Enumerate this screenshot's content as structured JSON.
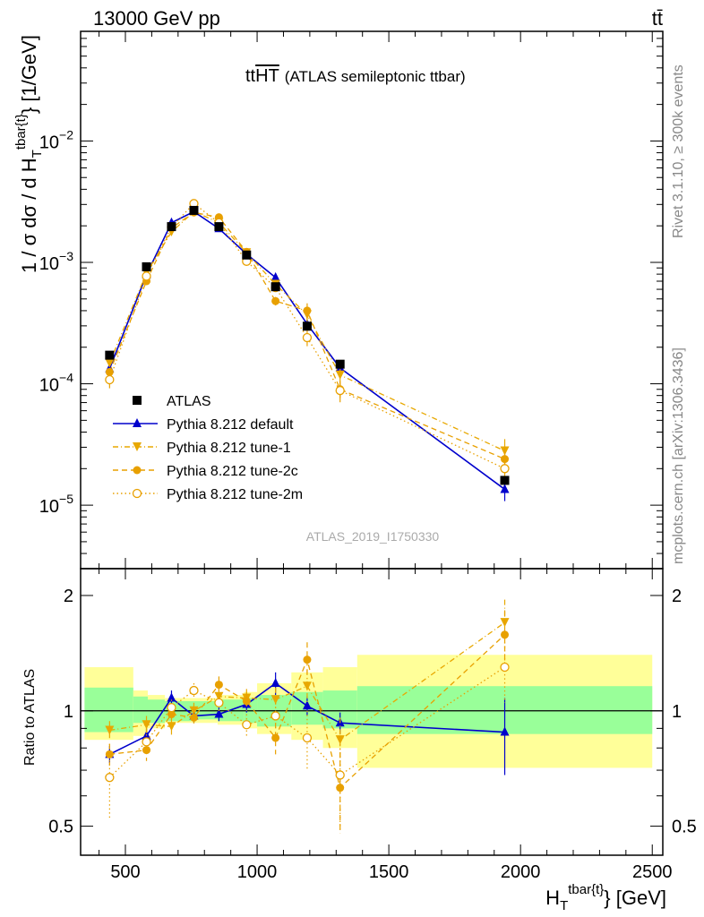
{
  "header": {
    "energy_label": "13000 GeV pp",
    "process_label": "tt̄"
  },
  "main_title": {
    "prefix": "tt",
    "overline": "HT",
    "suffix": "(ATLAS semileptonic ttbar)"
  },
  "side_labels": {
    "rivet": "Rivet 3.1.10, ≥ 300k events",
    "mcplots": "mcplots.cern.ch [arXiv:1306.3436]"
  },
  "watermark": "ATLAS_2019_I1750330",
  "axes": {
    "ylabel_main": "1 / σ dσ / d H",
    "ylabel_main_sub": "T",
    "ylabel_main_sup": "tbar{t}",
    "ylabel_main_suffix": "} [1/GeV]",
    "ylabel_ratio": "Ratio to ATLAS",
    "xlabel": "H",
    "xlabel_sub": "T",
    "xlabel_sup": "tbar{t}",
    "xlabel_suffix": "} [GeV]"
  },
  "chart_data": {
    "type": "line",
    "x_scale": "linear",
    "xlim": [
      330,
      2540
    ],
    "x_ticks": [
      500,
      1000,
      1500,
      2000,
      2500
    ],
    "main": {
      "y_scale": "log",
      "ylim": [
        3e-06,
        0.08
      ],
      "y_ticks": [
        {
          "value": 1e-05,
          "base": "10",
          "exp": "−5"
        },
        {
          "value": 0.0001,
          "base": "10",
          "exp": "−4"
        },
        {
          "value": 0.001,
          "base": "10",
          "exp": "−3"
        },
        {
          "value": 0.01,
          "base": "10",
          "exp": "−2"
        }
      ]
    },
    "ratio": {
      "y_scale": "log",
      "ylim": [
        0.42,
        2.35
      ],
      "y_ticks": [
        0.5,
        1,
        2
      ],
      "reference_line": 1
    },
    "x": [
      440,
      580,
      675,
      760,
      855,
      960,
      1070,
      1190,
      1315,
      1940
    ],
    "series": [
      {
        "name": "ATLAS",
        "color": "#000000",
        "style": "marker-square",
        "values": [
          0.000172,
          0.00092,
          0.00197,
          0.00268,
          0.00197,
          0.00115,
          0.00063,
          0.000298,
          0.000145,
          1.6e-05
        ],
        "ratio": [
          1,
          1,
          1,
          1,
          1,
          1,
          1,
          1,
          1,
          1
        ],
        "ratio_err": [
          0,
          0,
          0,
          0,
          0,
          0,
          0,
          0,
          0,
          0
        ]
      },
      {
        "name": "Pythia 8.212 default",
        "color": "#0000cc",
        "style": "solid",
        "marker": "triangle-up",
        "values": [
          0.000133,
          0.00079,
          0.00212,
          0.00262,
          0.0019,
          0.00117,
          0.00075,
          0.00031,
          0.000135,
          1.35e-05
        ],
        "ratio": [
          0.77,
          0.86,
          1.08,
          0.97,
          0.98,
          1.04,
          1.18,
          1.03,
          0.93,
          0.88
        ],
        "ratio_err": [
          0.04,
          0.04,
          0.05,
          0.04,
          0.04,
          0.05,
          0.08,
          0.06,
          0.06,
          0.2
        ]
      },
      {
        "name": "Pythia 8.212 tune-1",
        "color": "#e8a800",
        "style": "dashdot",
        "marker": "triangle-down",
        "values": [
          0.000148,
          0.00082,
          0.00178,
          0.00262,
          0.00213,
          0.0012,
          0.00066,
          0.00037,
          0.000118,
          2.8e-05
        ],
        "ratio": [
          0.89,
          0.92,
          0.91,
          1.0,
          1.09,
          1.08,
          1.07,
          1.16,
          0.84,
          1.7
        ],
        "ratio_err": [
          0.05,
          0.05,
          0.05,
          0.05,
          0.05,
          0.06,
          0.08,
          0.12,
          0.12,
          0.25
        ]
      },
      {
        "name": "Pythia 8.212 tune-2c",
        "color": "#e8a000",
        "style": "dashed",
        "marker": "circle",
        "values": [
          0.000125,
          0.0007,
          0.00192,
          0.00258,
          0.00235,
          0.00122,
          0.00048,
          0.0004,
          9e-05,
          2.4e-05
        ],
        "ratio": [
          0.77,
          0.79,
          0.98,
          0.96,
          1.17,
          1.06,
          0.85,
          1.36,
          0.63,
          1.58
        ],
        "ratio_err": [
          0.05,
          0.05,
          0.05,
          0.05,
          0.06,
          0.06,
          0.08,
          0.15,
          0.15,
          0.25
        ]
      },
      {
        "name": "Pythia 8.212 tune-2m",
        "color": "#e8a000",
        "style": "dotted",
        "marker": "open-circle",
        "values": [
          0.000108,
          0.00077,
          0.00196,
          0.00305,
          0.00212,
          0.00102,
          0.00062,
          0.00024,
          8.8e-05,
          2e-05
        ],
        "ratio": [
          0.67,
          0.83,
          1.02,
          1.13,
          1.05,
          0.92,
          0.97,
          0.85,
          0.68,
          1.3
        ],
        "ratio_err": [
          0.15,
          0.06,
          0.05,
          0.05,
          0.06,
          0.06,
          0.08,
          0.15,
          0.2,
          0.25
        ]
      }
    ],
    "uncertainty_bands": {
      "edges": [
        345,
        530,
        585,
        650,
        750,
        850,
        950,
        1000,
        1130,
        1250,
        1380,
        2500
      ],
      "inner_lo": [
        0.88,
        0.93,
        0.93,
        0.94,
        0.95,
        0.94,
        0.93,
        0.91,
        0.92,
        0.9,
        0.87
      ],
      "inner_hi": [
        1.15,
        1.09,
        1.07,
        1.06,
        1.06,
        1.07,
        1.08,
        1.1,
        1.12,
        1.13,
        1.16
      ],
      "outer_lo": [
        0.84,
        0.86,
        0.9,
        0.93,
        0.93,
        0.92,
        0.9,
        0.87,
        0.84,
        0.8,
        0.71
      ],
      "outer_hi": [
        1.3,
        1.13,
        1.1,
        1.08,
        1.08,
        1.1,
        1.12,
        1.18,
        1.26,
        1.3,
        1.4
      ],
      "inner_color": "#99ff99",
      "outer_color": "#ffff99"
    },
    "legend_placement": "lower-left",
    "grid": false
  }
}
